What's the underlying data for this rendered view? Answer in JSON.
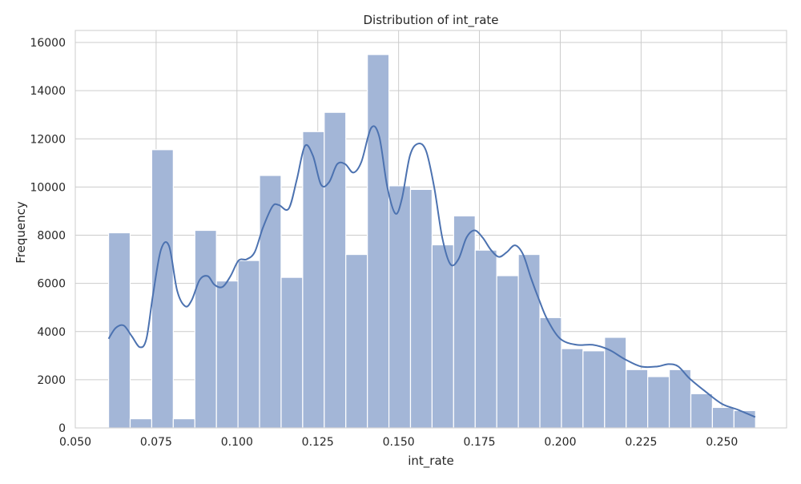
{
  "chart_data": {
    "type": "bar",
    "title": "Distribution of int_rate",
    "xlabel": "int_rate",
    "ylabel": "Frequency",
    "xlim": [
      0.05,
      0.27
    ],
    "ylim": [
      0,
      16500
    ],
    "x_ticks": [
      0.05,
      0.075,
      0.1,
      0.125,
      0.15,
      0.175,
      0.2,
      0.225,
      0.25
    ],
    "x_tick_labels": [
      "0.050",
      "0.075",
      "0.100",
      "0.125",
      "0.150",
      "0.175",
      "0.200",
      "0.225",
      "0.250"
    ],
    "y_ticks": [
      0,
      2000,
      4000,
      6000,
      8000,
      10000,
      12000,
      14000,
      16000
    ],
    "y_tick_labels": [
      "0",
      "2000",
      "4000",
      "6000",
      "8000",
      "10000",
      "12000",
      "14000",
      "16000"
    ],
    "grid": true,
    "bar_color": "#a3b6d7",
    "bar_edge_color": "#ffffff",
    "kde_color": "#4c72b0",
    "grid_color": "#cccccc",
    "bins": {
      "start": 0.0603,
      "width": 0.00667,
      "values": [
        8100,
        380,
        11550,
        380,
        8200,
        6100,
        6950,
        10480,
        6250,
        12300,
        13100,
        7200,
        15500,
        10050,
        9900,
        7600,
        8800,
        7380,
        6320,
        7200,
        4580,
        3290,
        3200,
        3760,
        2420,
        2130,
        2420,
        1420,
        850,
        720
      ]
    },
    "kde": {
      "x": [
        0.0603,
        0.0625,
        0.065,
        0.0675,
        0.07,
        0.072,
        0.074,
        0.0765,
        0.079,
        0.0815,
        0.084,
        0.086,
        0.0885,
        0.091,
        0.093,
        0.0955,
        0.098,
        0.1005,
        0.103,
        0.1055,
        0.108,
        0.111,
        0.113,
        0.116,
        0.1185,
        0.121,
        0.1235,
        0.126,
        0.1285,
        0.131,
        0.1335,
        0.136,
        0.1385,
        0.1415,
        0.144,
        0.1465,
        0.149,
        0.151,
        0.1535,
        0.156,
        0.1585,
        0.161,
        0.1635,
        0.166,
        0.1685,
        0.171,
        0.1735,
        0.176,
        0.1785,
        0.181,
        0.1835,
        0.186,
        0.1885,
        0.191,
        0.1935,
        0.196,
        0.2,
        0.205,
        0.21,
        0.215,
        0.22,
        0.225,
        0.23,
        0.2335,
        0.2365,
        0.24,
        0.245,
        0.25,
        0.255,
        0.2603
      ],
      "y": [
        3700,
        4150,
        4250,
        3800,
        3350,
        3700,
        5500,
        7400,
        7550,
        5700,
        5050,
        5300,
        6150,
        6300,
        5950,
        5850,
        6300,
        6950,
        7000,
        7300,
        8300,
        9200,
        9250,
        9100,
        10300,
        11700,
        11300,
        10100,
        10200,
        10950,
        10950,
        10600,
        11050,
        12450,
        12100,
        10000,
        8900,
        9500,
        11300,
        11800,
        11500,
        10000,
        7900,
        6800,
        7000,
        7900,
        8200,
        7900,
        7400,
        7100,
        7300,
        7580,
        7200,
        6200,
        5300,
        4500,
        3700,
        3450,
        3450,
        3250,
        2850,
        2550,
        2550,
        2650,
        2550,
        2050,
        1500,
        1000,
        750,
        450
      ]
    }
  }
}
